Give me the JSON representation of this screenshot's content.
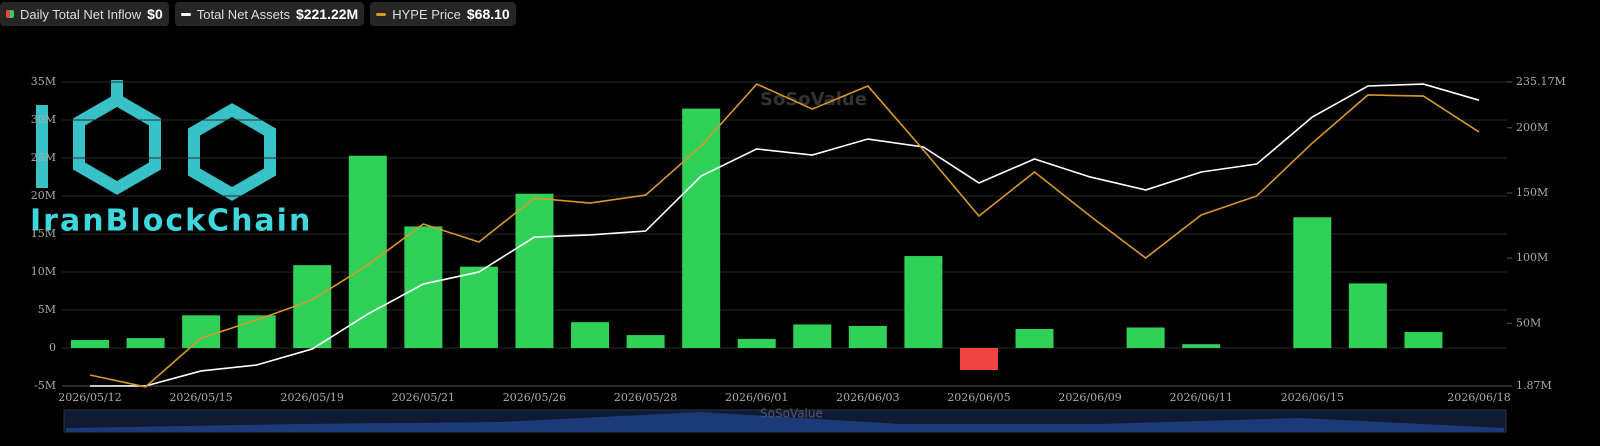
{
  "chart_data": {
    "type": "combo",
    "categories": [
      "2026/05/12",
      null,
      "2026/05/15",
      null,
      "2026/05/19",
      null,
      "2026/05/21",
      null,
      "2026/05/26",
      null,
      "2026/05/28",
      null,
      "2026/06/01",
      null,
      "2026/06/03",
      null,
      "2026/06/05",
      null,
      "2026/06/09",
      null,
      "2026/06/11",
      null,
      "2026/06/15",
      null,
      null,
      "2026/06/18"
    ],
    "ylim": [
      -5,
      35
    ],
    "yticks": [
      {
        "value": -5,
        "label": "-5M"
      },
      0,
      {
        "value": 5,
        "label": "5M"
      },
      {
        "value": 10,
        "label": "10M"
      },
      {
        "value": 15,
        "label": "15M"
      },
      {
        "value": 20,
        "label": "20M"
      },
      {
        "value": 25,
        "label": "25M"
      },
      {
        "value": 30,
        "label": "30M"
      },
      {
        "value": 35,
        "label": "35M"
      }
    ],
    "y2lim": [
      1.87,
      235.17
    ],
    "y2ticks": [
      {
        "value": 1.87,
        "label": "1.87M"
      },
      {
        "value": 50,
        "label": "50M"
      },
      {
        "value": 100,
        "label": "100M"
      },
      {
        "value": 150,
        "label": "150M"
      },
      {
        "value": 200,
        "label": "200M"
      },
      {
        "value": 235.17,
        "label": "235.17M"
      }
    ],
    "grid": true,
    "series": [
      {
        "name": "Daily Total Net Inflow",
        "legend_value": "$0",
        "type": "bar",
        "color": "#2fd158",
        "negative_color": "#f24343",
        "values": [
          1.05,
          1.3,
          4.3,
          4.3,
          10.9,
          25.3,
          16.0,
          10.7,
          20.3,
          3.4,
          1.7,
          31.5,
          1.2,
          3.1,
          2.9,
          12.1,
          -2.9,
          2.5,
          0,
          2.7,
          0.5,
          0,
          17.2,
          8.5,
          2.1,
          0
        ]
      },
      {
        "name": "Total Net Assets",
        "legend_value": "$221.22M",
        "type": "line",
        "axis": "y2",
        "color": "#ffffff",
        "values": [
          1.87,
          1.9,
          13.4,
          18,
          30.3,
          57.1,
          80.1,
          89.4,
          116.2,
          117.8,
          120.8,
          163.0,
          183.8,
          179.1,
          191.4,
          185.3,
          157.7,
          176.1,
          162.3,
          152.3,
          166.1,
          172.2,
          208.3,
          232.1,
          233.6,
          221.22
        ]
      },
      {
        "name": "HYPE Price",
        "legend_value": "$68.10",
        "type": "line",
        "axis": "y2",
        "color": "#d9982c",
        "values": [
          10.3,
          1.2,
          38.7,
          52.5,
          67.9,
          94.7,
          126.2,
          112.4,
          146.1,
          142.3,
          148.4,
          186.0,
          233.6,
          214.4,
          232.1,
          183.0,
          132.3,
          166.1,
          132.3,
          100.1,
          133.1,
          147.7,
          188.3,
          225.2,
          224.4,
          196.8
        ]
      }
    ]
  },
  "watermarks": {
    "logo": "IranBlockChain",
    "source": "SoSoValue"
  }
}
